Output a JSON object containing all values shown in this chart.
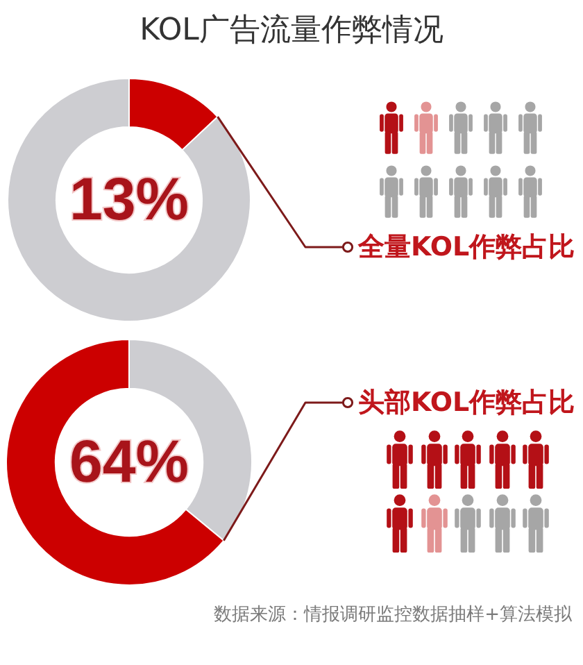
{
  "chart_data": [
    {
      "type": "donut",
      "title": "KOL广告流量作弊情况",
      "categories": [
        "全量KOL作弊占比",
        null
      ],
      "values": [
        13,
        87
      ],
      "colors": [
        "#cc0000",
        "#cdcdd1"
      ],
      "value_labels": [
        "13%",
        null
      ]
    },
    {
      "type": "donut",
      "categories": [
        null,
        "头部KOL作弊占比"
      ],
      "values": [
        36,
        64
      ],
      "colors": [
        "#cdcdd1",
        "#cc0000"
      ],
      "value_labels": [
        null,
        "64%"
      ],
      "annotations": [
        "数据来源：情报调研监控数据抽样+算法模拟"
      ]
    }
  ]
}
